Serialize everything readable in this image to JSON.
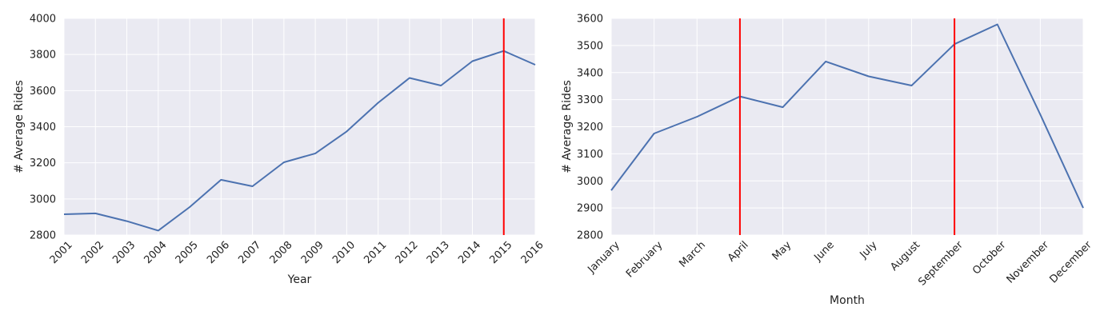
{
  "colors": {
    "plot_background": "#eaeaf2",
    "grid": "#ffffff",
    "line": "#4c72b0",
    "marker_line": "#ff0000"
  },
  "chart_data": [
    {
      "type": "line",
      "xlabel": "Year",
      "ylabel": "# Average Rides",
      "categories": [
        "2001",
        "2002",
        "2003",
        "2004",
        "2005",
        "2006",
        "2007",
        "2008",
        "2009",
        "2010",
        "2011",
        "2012",
        "2013",
        "2014",
        "2015",
        "2016"
      ],
      "values": [
        2915,
        2920,
        2877,
        2825,
        2955,
        3106,
        3070,
        3203,
        3252,
        3374,
        3533,
        3670,
        3628,
        3763,
        3820,
        3743
      ],
      "ylim": [
        2800,
        4000
      ],
      "yticks": [
        2800,
        3000,
        3200,
        3400,
        3600,
        3800,
        4000
      ],
      "vertical_lines": [
        "2015"
      ],
      "grid": true
    },
    {
      "type": "line",
      "xlabel": "Month",
      "ylabel": "# Average Rides",
      "categories": [
        "January",
        "February",
        "March",
        "April",
        "May",
        "June",
        "July",
        "August",
        "September",
        "October",
        "November",
        "December"
      ],
      "values": [
        2965,
        3175,
        3237,
        3312,
        3272,
        3441,
        3386,
        3352,
        3505,
        3578,
        3245,
        2900
      ],
      "ylim": [
        2800,
        3600
      ],
      "yticks": [
        2800,
        2900,
        3000,
        3100,
        3200,
        3300,
        3400,
        3500,
        3600
      ],
      "vertical_lines": [
        "April",
        "September"
      ],
      "grid": true
    }
  ]
}
